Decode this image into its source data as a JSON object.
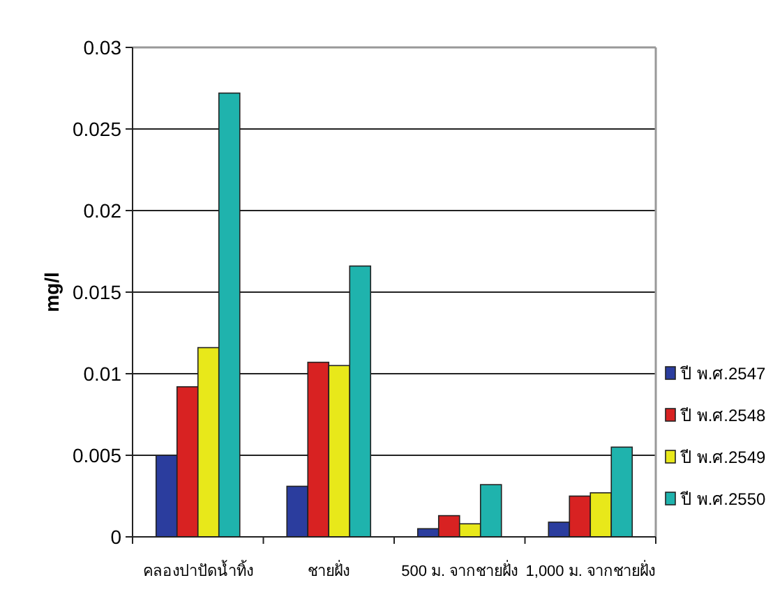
{
  "chart_data": {
    "type": "bar",
    "ylabel": "mg/l",
    "categories": [
      "คลองปาปัดน้ำทิ้ง",
      "ชายฝั่ง",
      "500 ม. จากชายฝั่ง",
      "1,000 ม. จากชายฝั่ง"
    ],
    "series": [
      {
        "name": "ปี พ.ศ.2547",
        "color": "#2b3d9e",
        "values": [
          0.005,
          0.0031,
          0.0005,
          0.0009
        ]
      },
      {
        "name": "ปี พ.ศ.2548",
        "color": "#d82222",
        "values": [
          0.0092,
          0.0107,
          0.0013,
          0.0025
        ]
      },
      {
        "name": "ปี พ.ศ.2549",
        "color": "#e8e81a",
        "values": [
          0.0116,
          0.0105,
          0.0008,
          0.0027
        ]
      },
      {
        "name": "ปี พ.ศ.2550",
        "color": "#1fb3ad",
        "values": [
          0.0272,
          0.0166,
          0.0032,
          0.0055
        ]
      }
    ],
    "ylim": [
      0,
      0.03
    ],
    "yticks": [
      0,
      0.005,
      0.01,
      0.015,
      0.02,
      0.025,
      0.03
    ],
    "grid": "y",
    "legend": "right"
  }
}
